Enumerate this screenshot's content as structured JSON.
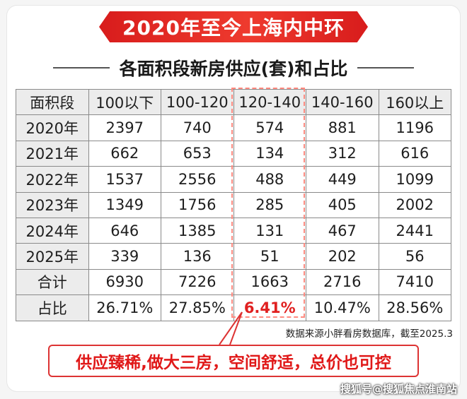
{
  "banner": {
    "title": "2020年至今上海内中环"
  },
  "subtitle": "各面积段新房供应(套)和占比",
  "chart_data": {
    "type": "table",
    "columns": [
      "面积段",
      "100以下",
      "100-120",
      "120-140",
      "140-160",
      "160以上"
    ],
    "rows": [
      [
        "2020年",
        "2397",
        "740",
        "574",
        "881",
        "1196"
      ],
      [
        "2021年",
        "662",
        "653",
        "134",
        "312",
        "616"
      ],
      [
        "2022年",
        "1537",
        "2556",
        "488",
        "449",
        "1099"
      ],
      [
        "2023年",
        "1349",
        "1756",
        "285",
        "405",
        "2002"
      ],
      [
        "2024年",
        "646",
        "1385",
        "131",
        "467",
        "2441"
      ],
      [
        "2025年",
        "339",
        "136",
        "51",
        "202",
        "56"
      ],
      [
        "合计",
        "6930",
        "7226",
        "1663",
        "2716",
        "7410"
      ],
      [
        "占比",
        "26.71%",
        "27.85%",
        "6.41%",
        "10.47%",
        "28.56%"
      ]
    ],
    "highlight_column": "120-140",
    "highlight_color": "#e02020"
  },
  "source_note": "数据来源小胖看房数据库，截至2025.3",
  "callout": "供应臻稀,做大三房，空间舒适，总价也可控",
  "watermark": "搜狐号@搜狐焦点淮南站"
}
